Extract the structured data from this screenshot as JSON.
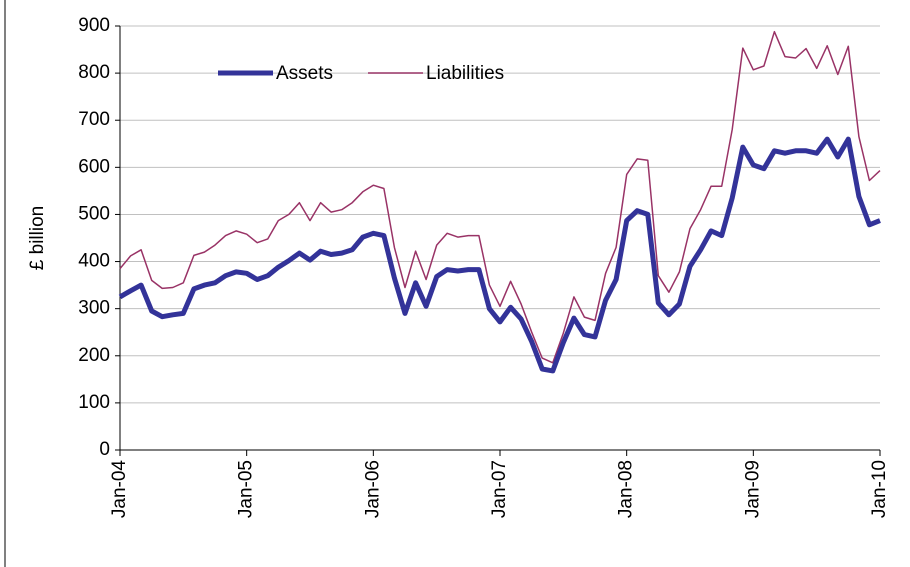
{
  "chart_data": {
    "type": "line",
    "categories": [
      "Jan-04",
      null,
      null,
      null,
      null,
      null,
      null,
      null,
      null,
      null,
      null,
      null,
      "Jan-05",
      null,
      null,
      null,
      null,
      null,
      null,
      null,
      null,
      null,
      null,
      null,
      "Jan-06",
      null,
      null,
      null,
      null,
      null,
      null,
      null,
      null,
      null,
      null,
      null,
      "Jan-07",
      null,
      null,
      null,
      null,
      null,
      null,
      null,
      null,
      null,
      null,
      null,
      "Jan-08",
      null,
      null,
      null,
      null,
      null,
      null,
      null,
      null,
      null,
      null,
      null,
      "Jan-09",
      null,
      null,
      null,
      null,
      null,
      null,
      null,
      null,
      null,
      null,
      null,
      "Jan-10"
    ],
    "series": [
      {
        "name": "Assets",
        "color": "#333399",
        "width": 5,
        "values": [
          325,
          338,
          350,
          295,
          283,
          287,
          290,
          342,
          350,
          355,
          370,
          378,
          375,
          362,
          370,
          388,
          402,
          418,
          403,
          422,
          415,
          418,
          425,
          452,
          460,
          455,
          365,
          290,
          355,
          305,
          368,
          383,
          380,
          383,
          383,
          300,
          272,
          303,
          278,
          230,
          172,
          168,
          228,
          280,
          245,
          240,
          318,
          362,
          487,
          508,
          500,
          312,
          287,
          310,
          390,
          425,
          465,
          455,
          535,
          643,
          605,
          597,
          635,
          630,
          635,
          635,
          630,
          660,
          622,
          660,
          538,
          478,
          487
        ]
      },
      {
        "name": "Liabilities",
        "color": "#993366",
        "width": 1.5,
        "values": [
          385,
          412,
          425,
          360,
          343,
          345,
          355,
          413,
          420,
          435,
          455,
          465,
          458,
          440,
          448,
          487,
          500,
          525,
          487,
          525,
          505,
          510,
          525,
          548,
          562,
          555,
          430,
          345,
          422,
          362,
          435,
          460,
          452,
          455,
          455,
          350,
          305,
          358,
          310,
          250,
          195,
          185,
          248,
          325,
          282,
          275,
          375,
          430,
          585,
          618,
          615,
          370,
          335,
          378,
          470,
          510,
          560,
          560,
          680,
          853,
          807,
          815,
          888,
          835,
          832,
          852,
          810,
          858,
          797,
          857,
          665,
          572,
          593
        ]
      }
    ],
    "y_label": "£ billion",
    "ylim": [
      0,
      900
    ],
    "yticks": [
      0,
      100,
      200,
      300,
      400,
      500,
      600,
      700,
      800,
      900
    ],
    "grid": true
  }
}
